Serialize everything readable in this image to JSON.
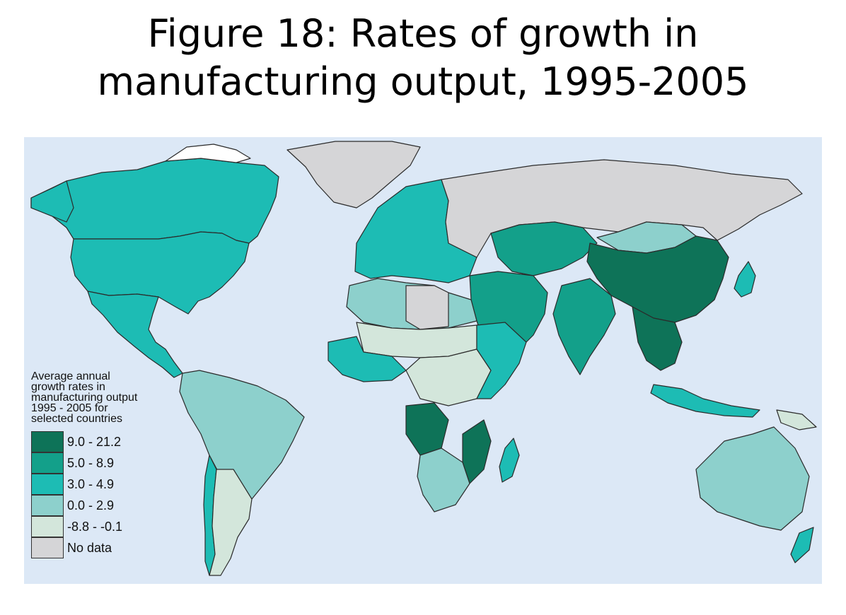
{
  "title_lines": [
    "Figure 18: Rates of growth in",
    "manufacturing output, 1995-2005"
  ],
  "legend": {
    "title_lines": [
      "Average annual",
      "growth rates in",
      "manufacturing output",
      "1995 - 2005 for",
      "selected countries"
    ],
    "items": [
      {
        "label": "9.0 - 21.2",
        "color": "#0e7358"
      },
      {
        "label": "5.0 - 8.9",
        "color": "#13a08a"
      },
      {
        "label": "3.0 - 4.9",
        "color": "#1dbcb4"
      },
      {
        "label": "0.0 - 2.9",
        "color": "#8dd0cc"
      },
      {
        "label": "-8.8 - -0.1",
        "color": "#d3e6db"
      },
      {
        "label": "No data",
        "color": "#d5d5d7"
      }
    ]
  },
  "colors": {
    "ocean": "#dce8f6",
    "border": "#2b2b2b",
    "ice": "#ffffff"
  },
  "regions": {
    "canada": "3.0 - 4.9",
    "united_states": "3.0 - 4.9",
    "mexico_central_america": "3.0 - 4.9",
    "greenland": "No data",
    "south_america": "0.0 - 2.9",
    "chile": "3.0 - 4.9",
    "argentina": "-8.8 - -0.1",
    "europe": "3.0 - 4.9",
    "russia": "No data",
    "central_asia": "5.0 - 8.9",
    "mongolia": "0.0 - 2.9",
    "china": "9.0 - 21.2",
    "southeast_asia_mainland": "9.0 - 21.2",
    "india": "5.0 - 8.9",
    "middle_east": "5.0 - 8.9",
    "japan": "3.0 - 4.9",
    "indonesia": "3.0 - 4.9",
    "north_africa": "0.0 - 2.9",
    "libya": "No data",
    "sahel": "-8.8 - -0.1",
    "west_africa": "3.0 - 4.9",
    "central_africa": "-8.8 - -0.1",
    "angola": "9.0 - 21.2",
    "east_africa": "3.0 - 4.9",
    "mozambique": "9.0 - 21.2",
    "southern_africa": "0.0 - 2.9",
    "madagascar": "3.0 - 4.9",
    "australia": "0.0 - 2.9",
    "new_zealand": "3.0 - 4.9",
    "papua_new_guinea": "-8.8 - -0.1"
  }
}
